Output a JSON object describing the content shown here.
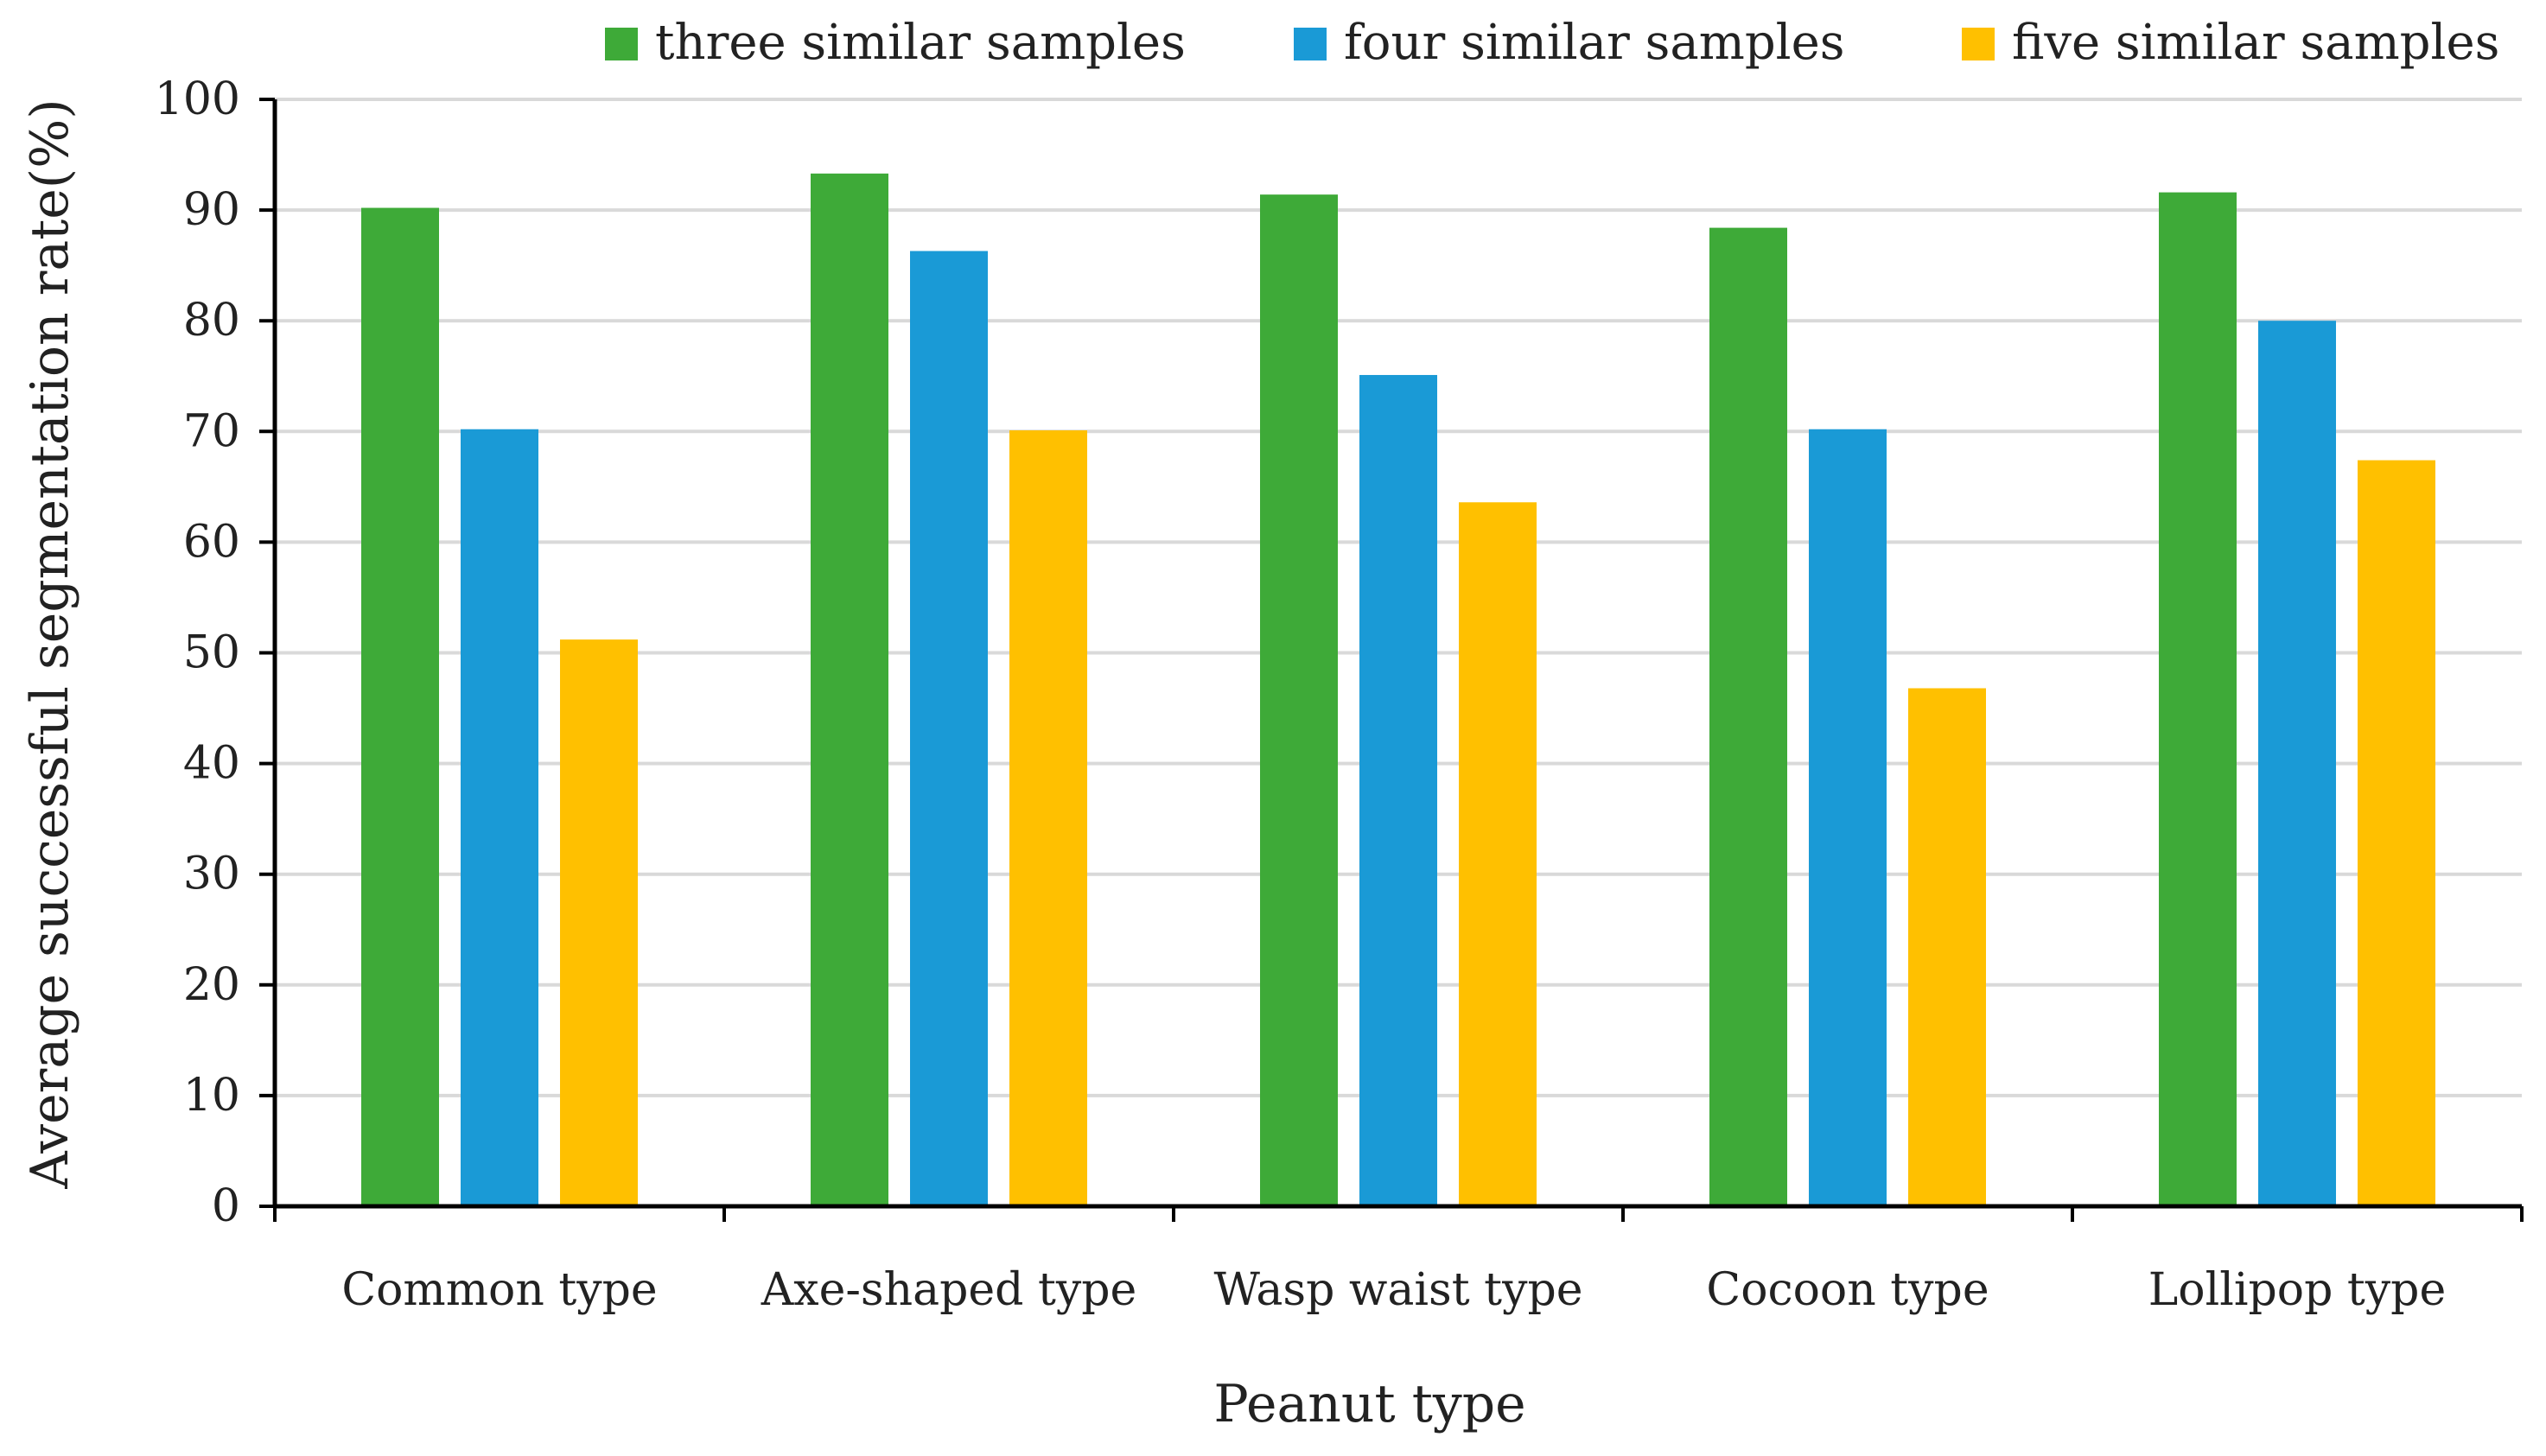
{
  "chart_data": {
    "type": "bar",
    "title": "",
    "xlabel": "Peanut type",
    "ylabel": "Average successful segmentation rate(%)",
    "ylim": [
      0,
      100
    ],
    "yticks": [
      0,
      10,
      20,
      30,
      40,
      50,
      60,
      70,
      80,
      90,
      100
    ],
    "grid": true,
    "legend_position": "top",
    "categories": [
      "Common type",
      "Axe-shaped type",
      "Wasp waist type",
      "Cocoon type",
      "Lollipop type"
    ],
    "series": [
      {
        "name": "three similar samples",
        "color": "#3EAA38",
        "values": [
          90.2,
          93.3,
          91.4,
          88.4,
          91.6
        ]
      },
      {
        "name": "four similar samples",
        "color": "#1A9AD6",
        "values": [
          70.2,
          86.3,
          75.1,
          70.2,
          80.0
        ]
      },
      {
        "name": "five similar samples",
        "color": "#FFC000",
        "values": [
          51.2,
          70.1,
          63.6,
          46.8,
          67.4
        ]
      }
    ]
  }
}
